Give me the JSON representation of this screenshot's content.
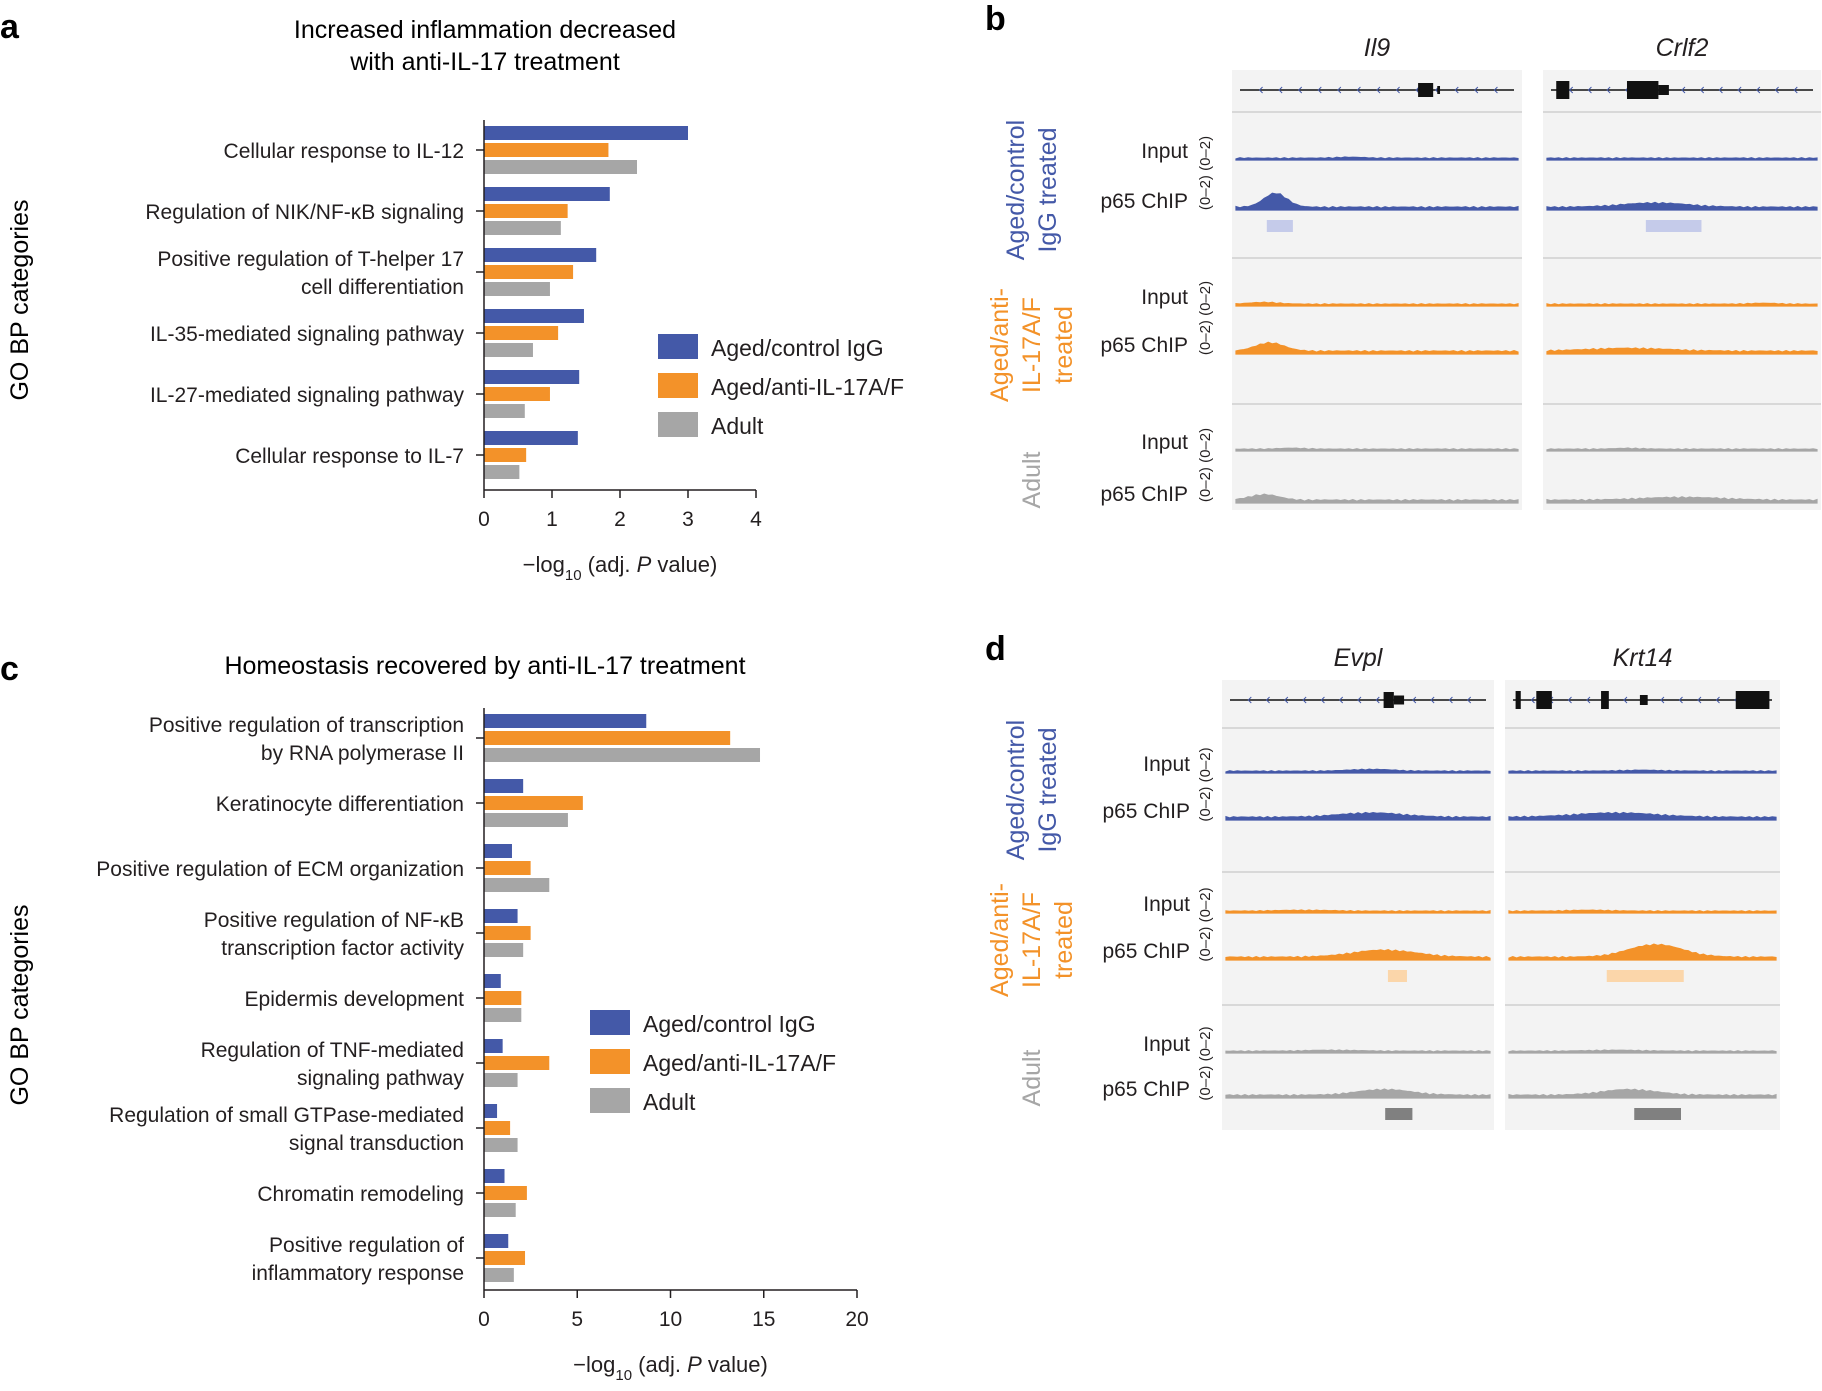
{
  "colors": {
    "aged_igg": "#4459a8",
    "aged_anti": "#f39229",
    "adult": "#a6a6a6",
    "text": "#231f20",
    "track_bg": "#f3f3f3"
  },
  "panel_labels": {
    "a": "a",
    "b": "b",
    "c": "c",
    "d": "d"
  },
  "chart_data": [
    {
      "panel": "a",
      "type": "bar",
      "orientation": "horizontal",
      "title": "Increased inflammation decreased with anti-IL-17 treatment",
      "title_lines": [
        "Increased inflammation decreased",
        "with anti-IL-17 treatment"
      ],
      "ylabel": "GO BP categories",
      "xlabel": "−log10 (adj. P value)",
      "xlabel_parts": {
        "pre": "−log",
        "sub": "10",
        "mid": " (adj. ",
        "italic": "P",
        "post": " value)"
      },
      "xlim": [
        0,
        4
      ],
      "xticks": [
        0,
        1,
        2,
        3,
        4
      ],
      "categories": [
        [
          "Cellular response to IL-12"
        ],
        [
          "Regulation of NIK/NF-κB signaling"
        ],
        [
          "Positive regulation of T-helper 17",
          "cell differentiation"
        ],
        [
          "IL-35-mediated signaling pathway"
        ],
        [
          "IL-27-mediated signaling pathway"
        ],
        [
          "Cellular response to IL-7"
        ]
      ],
      "series": [
        {
          "name": "Aged/control IgG",
          "values": [
            3.0,
            1.85,
            1.65,
            1.47,
            1.4,
            1.38
          ]
        },
        {
          "name": "Aged/anti-IL-17A/F",
          "values": [
            1.83,
            1.23,
            1.31,
            1.09,
            0.97,
            0.62
          ]
        },
        {
          "name": "Adult",
          "values": [
            2.25,
            1.13,
            0.97,
            0.72,
            0.6,
            0.52
          ]
        }
      ],
      "legend": [
        "Aged/control IgG",
        "Aged/anti-IL-17A/F",
        "Adult"
      ],
      "legend_position": "right"
    },
    {
      "panel": "c",
      "type": "bar",
      "orientation": "horizontal",
      "title": "Homeostasis recovered by anti-IL-17 treatment",
      "title_lines": [
        "Homeostasis recovered by anti-IL-17 treatment"
      ],
      "ylabel": "GO BP categories",
      "xlabel": "−log10 (adj. P value)",
      "xlabel_parts": {
        "pre": "−log",
        "sub": "10",
        "mid": " (adj. ",
        "italic": "P",
        "post": " value)"
      },
      "xlim": [
        0,
        20
      ],
      "xticks": [
        0,
        5,
        10,
        15,
        20
      ],
      "categories": [
        [
          "Positive regulation of transcription",
          "by RNA polymerase II"
        ],
        [
          "Keratinocyte differentiation"
        ],
        [
          "Positive regulation of ECM organization"
        ],
        [
          "Positive regulation of NF-κB",
          "transcription factor activity"
        ],
        [
          "Epidermis development"
        ],
        [
          "Regulation of TNF-mediated",
          "signaling pathway"
        ],
        [
          "Regulation of small GTPase-mediated",
          "signal transduction"
        ],
        [
          "Chromatin remodeling"
        ],
        [
          "Positive regulation of",
          "inflammatory response"
        ]
      ],
      "series": [
        {
          "name": "Aged/control IgG",
          "values": [
            8.7,
            2.1,
            1.5,
            1.8,
            0.9,
            1.0,
            0.7,
            1.1,
            1.3
          ]
        },
        {
          "name": "Aged/anti-IL-17A/F",
          "values": [
            13.2,
            5.3,
            2.5,
            2.5,
            2.0,
            3.5,
            1.4,
            2.3,
            2.2
          ]
        },
        {
          "name": "Adult",
          "values": [
            14.8,
            4.5,
            3.5,
            2.1,
            2.0,
            1.8,
            1.8,
            1.7,
            1.6
          ]
        }
      ],
      "legend": [
        "Aged/control IgG",
        "Aged/anti-IL-17A/F",
        "Adult"
      ],
      "legend_position": "right"
    }
  ],
  "tracks": {
    "b": {
      "genes": [
        "Il9",
        "Crlf2"
      ],
      "groups": [
        {
          "label_lines": [
            "Aged/control",
            "IgG treated"
          ],
          "color_key": "aged_igg"
        },
        {
          "label_lines": [
            "Aged/anti-",
            "IL-17A/F",
            "treated"
          ],
          "color_key": "aged_anti"
        },
        {
          "label_lines": [
            "Adult"
          ],
          "color_key": "adult"
        }
      ],
      "row_labels": [
        "Input",
        "p65 ChIP"
      ],
      "range_label": "(0–2)"
    },
    "d": {
      "genes": [
        "Evpl",
        "Krt14"
      ],
      "groups": [
        {
          "label_lines": [
            "Aged/control",
            "IgG treated"
          ],
          "color_key": "aged_igg"
        },
        {
          "label_lines": [
            "Aged/anti-",
            "IL-17A/F",
            "treated"
          ],
          "color_key": "aged_anti"
        },
        {
          "label_lines": [
            "Adult"
          ],
          "color_key": "adult"
        }
      ],
      "row_labels": [
        "Input",
        "p65 ChIP"
      ],
      "range_label": "(0–2)"
    }
  }
}
